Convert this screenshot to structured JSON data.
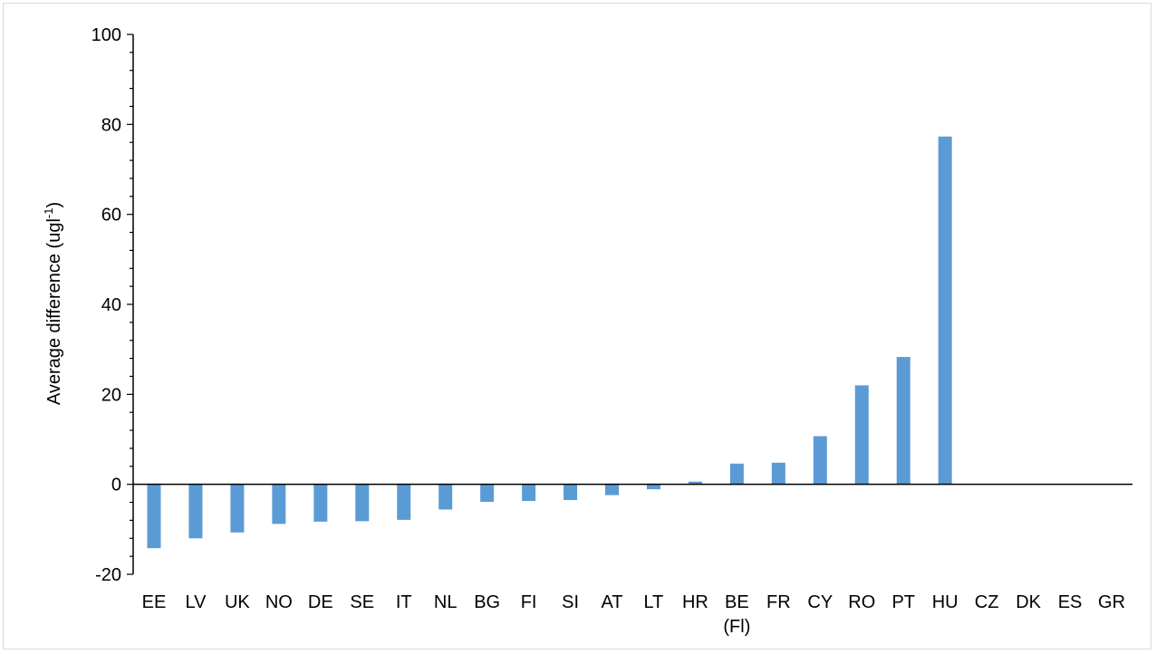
{
  "chart_data": {
    "type": "bar",
    "categories": [
      "EE",
      "LV",
      "UK",
      "NO",
      "DE",
      "SE",
      "IT",
      "NL",
      "BG",
      "FI",
      "SI",
      "AT",
      "LT",
      "HR",
      "BE (Fl)",
      "FR",
      "CY",
      "RO",
      "PT",
      "HU",
      "CZ",
      "DK",
      "ES",
      "GR"
    ],
    "category_labels": [
      [
        "EE"
      ],
      [
        "LV"
      ],
      [
        "UK"
      ],
      [
        "NO"
      ],
      [
        "DE"
      ],
      [
        "SE"
      ],
      [
        "IT"
      ],
      [
        "NL"
      ],
      [
        "BG"
      ],
      [
        "FI"
      ],
      [
        "SI"
      ],
      [
        "AT"
      ],
      [
        "LT"
      ],
      [
        "HR"
      ],
      [
        "BE",
        "(Fl)"
      ],
      [
        "FR"
      ],
      [
        "CY"
      ],
      [
        "RO"
      ],
      [
        "PT"
      ],
      [
        "HU"
      ],
      [
        "CZ"
      ],
      [
        "DK"
      ],
      [
        "ES"
      ],
      [
        "GR"
      ]
    ],
    "values": [
      -14.2,
      -12.0,
      -10.7,
      -8.8,
      -8.3,
      -8.2,
      -7.9,
      -5.6,
      -3.9,
      -3.7,
      -3.5,
      -2.4,
      -1.1,
      0.6,
      4.6,
      4.8,
      10.7,
      22.0,
      28.3,
      77.3,
      0,
      0,
      0,
      0
    ],
    "title": "",
    "xlabel": "",
    "ylabel": "Average difference (ugl",
    "ylabel_superscript": "-1",
    "ylabel_suffix": ")",
    "ylim": [
      -20,
      100
    ],
    "yticks": [
      -20,
      0,
      20,
      40,
      60,
      80,
      100
    ],
    "bar_color": "#5b9bd5",
    "grid": false,
    "legend": "none"
  }
}
